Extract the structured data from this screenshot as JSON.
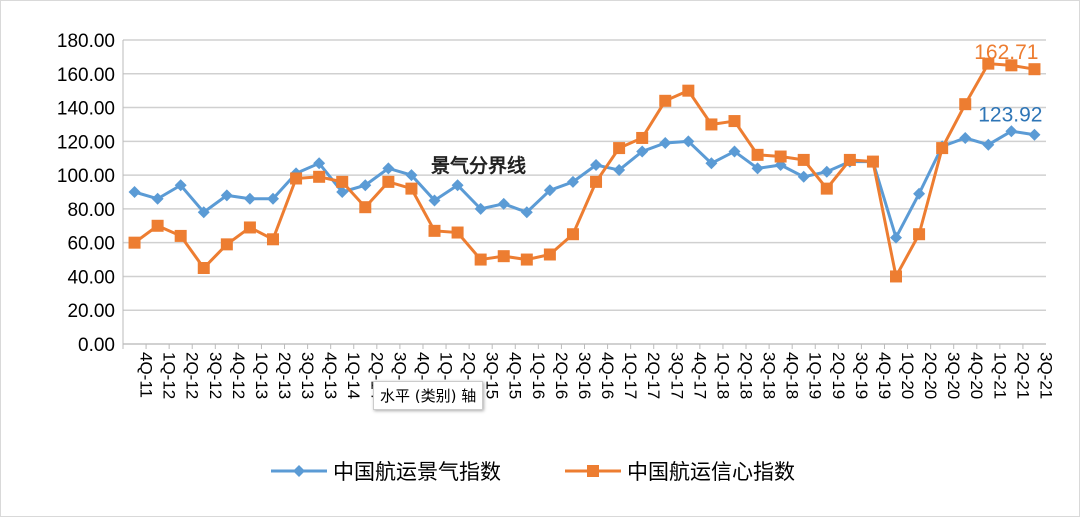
{
  "chart_data": {
    "type": "line",
    "categories": [
      "4Q-11",
      "1Q-12",
      "2Q-12",
      "3Q-12",
      "4Q-12",
      "1Q-13",
      "2Q-13",
      "3Q-13",
      "4Q-13",
      "1Q-14",
      "2Q-14",
      "3Q-14",
      "4Q-14",
      "1Q-15",
      "2Q-15",
      "3Q-15",
      "4Q-15",
      "1Q-16",
      "2Q-16",
      "3Q-16",
      "4Q-16",
      "1Q-17",
      "2Q-17",
      "3Q-17",
      "4Q-17",
      "1Q-18",
      "2Q-18",
      "3Q-18",
      "4Q-18",
      "1Q-19",
      "2Q-19",
      "3Q-19",
      "4Q-19",
      "1Q-20",
      "2Q-20",
      "3Q-20",
      "4Q-20",
      "1Q-21",
      "2Q-21",
      "3Q-21"
    ],
    "series": [
      {
        "name": "中国航运景气指数",
        "color": "#5b9bd5",
        "marker": "diamond",
        "values": [
          90,
          86,
          94,
          78,
          88,
          86,
          86,
          101,
          107,
          90,
          94,
          104,
          100,
          85,
          94,
          80,
          83,
          78,
          91,
          96,
          106,
          103,
          114,
          119,
          120,
          107,
          114,
          104,
          106,
          99,
          102,
          108,
          108,
          63,
          89,
          117,
          122,
          118,
          126,
          123.92
        ]
      },
      {
        "name": "中国航运信心指数",
        "color": "#ed7d31",
        "marker": "square",
        "values": [
          60,
          70,
          64,
          45,
          59,
          69,
          62,
          98,
          99,
          96,
          81,
          96,
          92,
          67,
          66,
          50,
          52,
          50,
          53,
          65,
          96,
          116,
          122,
          144,
          150,
          130,
          132,
          112,
          111,
          109,
          92,
          109,
          108,
          40,
          65,
          116,
          142,
          166,
          165,
          162.71
        ]
      }
    ],
    "data_labels": {
      "blue": "123.92",
      "orange": "162.71"
    },
    "yticks": [
      "0.00",
      "20.00",
      "40.00",
      "60.00",
      "80.00",
      "100.00",
      "120.00",
      "140.00",
      "160.00",
      "180.00"
    ],
    "ylim": [
      0,
      180
    ],
    "grid": true,
    "legend": "bottom",
    "annotation": "景气分界线",
    "tooltip": "水平 (类别) 轴"
  }
}
